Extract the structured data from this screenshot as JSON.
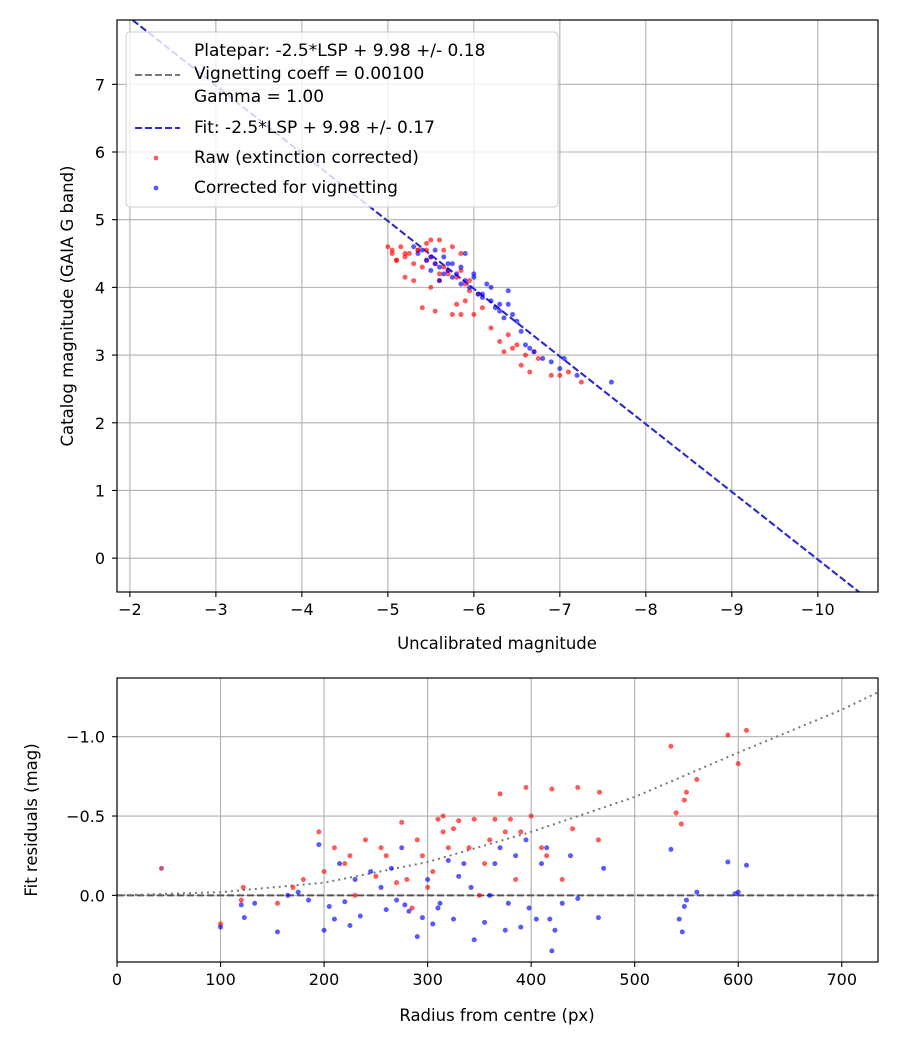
{
  "chart_data": [
    {
      "type": "scatter",
      "xlabel": "Uncalibrated magnitude",
      "ylabel": "Catalog magnitude (GAIA G band)",
      "xlim": [
        -1.85,
        -10.7
      ],
      "ylim": [
        7.95,
        -0.5
      ],
      "x_ticks": [
        -2,
        -3,
        -4,
        -5,
        -6,
        -7,
        -8,
        -9,
        -10
      ],
      "x_tick_labels": [
        "−2",
        "−3",
        "−4",
        "−5",
        "−6",
        "−7",
        "−8",
        "−9",
        "−10"
      ],
      "y_ticks": [
        0,
        1,
        2,
        3,
        4,
        5,
        6,
        7
      ],
      "y_tick_labels": [
        "0",
        "1",
        "2",
        "3",
        "4",
        "5",
        "6",
        "7"
      ],
      "grid": true,
      "legend_position": "top-left",
      "legend": [
        {
          "label": "Platepar: -2.5*LSP + 9.98 +/- 0.18",
          "kind": "line",
          "color": "#777777"
        },
        {
          "label": "Vignetting coeff = 0.00100",
          "kind": "text",
          "color": "#777777"
        },
        {
          "label": "Gamma = 1.00",
          "kind": "text",
          "color": "#777777"
        },
        {
          "label": "Fit: -2.5*LSP + 9.98 +/- 0.17",
          "kind": "line",
          "color": "#2a2ad9"
        },
        {
          "label": "Raw (extinction corrected)",
          "kind": "marker",
          "color": "#ff0000"
        },
        {
          "label": "Corrected for vignetting",
          "kind": "marker",
          "color": "#0000ff"
        }
      ],
      "lines": [
        {
          "name": "Platepar",
          "slope": 1.0,
          "intercept": 9.98,
          "color": "#777777"
        },
        {
          "name": "Fit",
          "slope": 1.0,
          "intercept": 9.98,
          "color": "#2a2ad9"
        }
      ],
      "series": [
        {
          "name": "Raw (extinction corrected)",
          "color": "#ff0000",
          "x": [
            -5.0,
            -5.1,
            -5.05,
            -5.2,
            -5.3,
            -5.15,
            -5.25,
            -5.4,
            -5.35,
            -5.45,
            -5.2,
            -5.5,
            -5.4,
            -5.55,
            -5.45,
            -5.6,
            -5.35,
            -5.5,
            -5.65,
            -5.6,
            -5.7,
            -5.75,
            -5.8,
            -5.85,
            -5.7,
            -5.9,
            -5.8,
            -5.95,
            -6.0,
            -5.9,
            -6.05,
            -5.65,
            -5.75,
            -6.1,
            -5.85,
            -6.2,
            -6.3,
            -6.35,
            -6.45,
            -6.5,
            -6.6,
            -6.55,
            -6.7,
            -6.65,
            -6.75,
            -6.4,
            -6.9,
            -7.0,
            -7.25,
            -7.1,
            -5.55,
            -5.6,
            -5.85,
            -5.95,
            -5.5,
            -5.45,
            -5.2,
            -5.3,
            -5.05,
            -5.1
          ],
          "y": [
            4.6,
            4.4,
            4.5,
            4.45,
            4.1,
            4.6,
            4.5,
            4.3,
            4.55,
            4.65,
            4.15,
            4.7,
            3.7,
            3.65,
            4.4,
            4.1,
            4.55,
            4.45,
            4.3,
            4.7,
            4.25,
            3.6,
            3.75,
            3.6,
            4.2,
            4.05,
            4.15,
            4.1,
            3.6,
            3.8,
            3.9,
            4.55,
            4.6,
            3.7,
            4.5,
            3.4,
            3.2,
            3.05,
            3.1,
            3.15,
            3.0,
            2.85,
            3.05,
            2.75,
            2.95,
            3.3,
            2.7,
            2.7,
            2.6,
            2.75,
            4.35,
            4.2,
            4.25,
            3.95,
            4.0,
            4.55,
            4.5,
            4.35,
            4.55,
            4.4
          ]
        },
        {
          "name": "Corrected for vignetting",
          "color": "#0000ff",
          "x": [
            -5.3,
            -5.4,
            -5.35,
            -5.5,
            -5.45,
            -5.55,
            -5.6,
            -5.5,
            -5.65,
            -5.7,
            -5.75,
            -5.6,
            -5.8,
            -5.85,
            -5.7,
            -5.9,
            -5.95,
            -6.0,
            -5.85,
            -6.05,
            -6.1,
            -6.0,
            -6.15,
            -6.2,
            -6.25,
            -6.3,
            -6.1,
            -6.35,
            -6.4,
            -6.45,
            -6.5,
            -6.55,
            -6.6,
            -6.7,
            -6.8,
            -6.9,
            -7.0,
            -7.2,
            -7.6,
            -6.65,
            -6.4,
            -6.3,
            -5.65,
            -5.75,
            -5.55,
            -5.9,
            -6.2,
            -7.05
          ],
          "y": [
            4.6,
            4.55,
            4.5,
            4.45,
            4.4,
            4.35,
            4.3,
            4.25,
            4.2,
            4.25,
            4.15,
            4.1,
            4.2,
            4.05,
            4.35,
            4.1,
            4.0,
            4.15,
            4.3,
            3.9,
            3.85,
            4.2,
            4.05,
            3.8,
            3.7,
            3.65,
            3.9,
            3.55,
            3.75,
            3.6,
            3.5,
            3.35,
            3.15,
            3.05,
            2.95,
            2.9,
            2.8,
            2.7,
            2.6,
            3.1,
            3.95,
            3.75,
            4.45,
            4.35,
            4.55,
            4.5,
            4.0,
            2.95
          ]
        }
      ]
    },
    {
      "type": "scatter",
      "xlabel": "Radius from centre (px)",
      "ylabel": "Fit residuals (mag)",
      "xlim": [
        0,
        735
      ],
      "ylim": [
        -1.37,
        0.42
      ],
      "x_ticks": [
        0,
        100,
        200,
        300,
        400,
        500,
        600,
        700
      ],
      "x_tick_labels": [
        "0",
        "100",
        "200",
        "300",
        "400",
        "500",
        "600",
        "700"
      ],
      "y_ticks": [
        0.0,
        -0.5,
        -1.0
      ],
      "y_tick_labels": [
        "0.0",
        "−0.5",
        "−1.0"
      ],
      "grid": true,
      "reference_lines": [
        {
          "name": "zero",
          "y": 0.0,
          "style": "dashed",
          "color": "#555555"
        },
        {
          "name": "vignetting model",
          "points": [
            [
              0,
              0.0
            ],
            [
              100,
              -0.02
            ],
            [
              200,
              -0.08
            ],
            [
              300,
              -0.21
            ],
            [
              400,
              -0.4
            ],
            [
              500,
              -0.62
            ],
            [
              600,
              -0.9
            ],
            [
              700,
              -1.17
            ],
            [
              735,
              -1.28
            ]
          ],
          "style": "dotted",
          "color": "#777777"
        }
      ],
      "series": [
        {
          "name": "Raw (extinction corrected)",
          "color": "#ff0000",
          "x": [
            100,
            120,
            122,
            155,
            170,
            180,
            195,
            200,
            210,
            220,
            225,
            230,
            240,
            250,
            255,
            260,
            270,
            275,
            280,
            285,
            290,
            295,
            300,
            305,
            310,
            315,
            315,
            320,
            325,
            330,
            340,
            345,
            350,
            355,
            360,
            365,
            370,
            375,
            380,
            385,
            390,
            395,
            400,
            410,
            415,
            420,
            430,
            440,
            445,
            465,
            466,
            535,
            540,
            545,
            548,
            550,
            560,
            590,
            600,
            608
          ],
          "y": [
            0.18,
            0.03,
            -0.05,
            0.05,
            -0.05,
            -0.1,
            -0.4,
            -0.15,
            -0.3,
            -0.2,
            -0.25,
            0.0,
            -0.35,
            -0.12,
            -0.3,
            -0.25,
            -0.08,
            -0.46,
            -0.1,
            0.08,
            -0.35,
            -0.25,
            -0.05,
            -0.15,
            -0.48,
            -0.4,
            -0.5,
            -0.3,
            -0.42,
            -0.47,
            -0.3,
            -0.48,
            0.0,
            -0.2,
            -0.35,
            -0.48,
            -0.64,
            -0.4,
            -0.48,
            -0.1,
            -0.4,
            -0.68,
            -0.5,
            -0.3,
            -0.25,
            -0.67,
            -0.1,
            -0.42,
            -0.68,
            -0.35,
            -0.65,
            -0.94,
            -0.52,
            -0.45,
            -0.6,
            -0.65,
            -0.73,
            -1.01,
            -0.83,
            -1.04
          ]
        },
        {
          "name": "Corrected for vignetting",
          "color": "#0000ff",
          "x": [
            100,
            120,
            123,
            133,
            155,
            165,
            175,
            185,
            195,
            200,
            205,
            210,
            215,
            220,
            225,
            230,
            235,
            245,
            255,
            260,
            265,
            270,
            275,
            278,
            282,
            290,
            295,
            300,
            305,
            310,
            312,
            320,
            325,
            330,
            335,
            342,
            345,
            355,
            360,
            365,
            370,
            375,
            378,
            385,
            390,
            395,
            398,
            405,
            410,
            415,
            418,
            420,
            423,
            430,
            438,
            445,
            465,
            470,
            535,
            543,
            546,
            548,
            550,
            560,
            590,
            597,
            600,
            608
          ],
          "y": [
            0.2,
            0.06,
            0.14,
            0.05,
            0.23,
            0.0,
            -0.02,
            0.03,
            -0.32,
            0.22,
            0.07,
            0.15,
            -0.2,
            0.04,
            0.19,
            -0.1,
            0.13,
            -0.15,
            -0.05,
            0.09,
            -0.17,
            0.03,
            -0.3,
            0.06,
            0.1,
            0.26,
            0.14,
            -0.1,
            0.18,
            0.08,
            0.05,
            -0.22,
            0.15,
            -0.12,
            -0.2,
            -0.05,
            0.28,
            0.17,
            0.0,
            -0.2,
            -0.3,
            0.22,
            0.05,
            -0.25,
            0.2,
            -0.35,
            0.08,
            0.15,
            -0.2,
            -0.3,
            0.15,
            0.35,
            0.22,
            0.05,
            -0.25,
            0.02,
            0.14,
            -0.17,
            -0.29,
            0.15,
            0.23,
            0.07,
            0.03,
            -0.02,
            -0.21,
            -0.01,
            -0.02,
            -0.19
          ]
        },
        {
          "name": "Overlapping point",
          "color": "#990055",
          "x": [
            43
          ],
          "y": [
            -0.17
          ]
        }
      ]
    }
  ]
}
